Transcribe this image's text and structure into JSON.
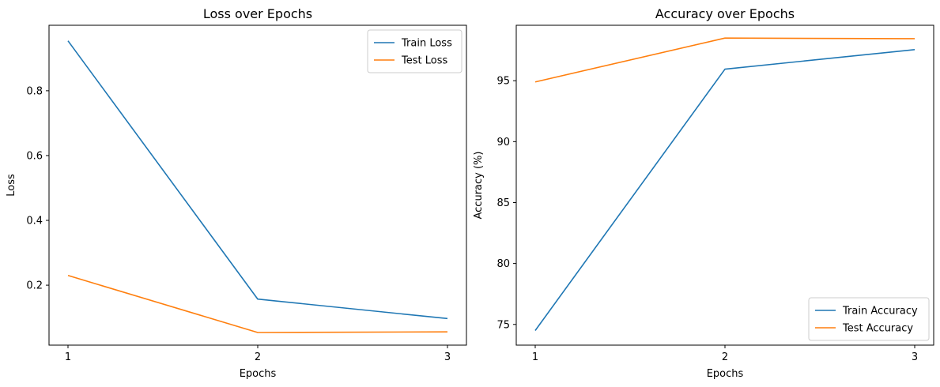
{
  "chart_data": [
    {
      "type": "line",
      "title": "Loss over Epochs",
      "xlabel": "Epochs",
      "ylabel": "Loss",
      "x": [
        1,
        2,
        3
      ],
      "xlim": [
        0.9,
        3.1
      ],
      "ylim": [
        0.015,
        1.002
      ],
      "xticks": [
        1,
        2,
        3
      ],
      "yticks": [
        0.2,
        0.4,
        0.6,
        0.8
      ],
      "ytick_labels": [
        "0.2",
        "0.4",
        "0.6",
        "0.8"
      ],
      "legend_position": "top-right",
      "grid": false,
      "series": [
        {
          "name": "Train Loss",
          "color": "#1f77b4",
          "values": [
            0.954,
            0.157,
            0.097
          ]
        },
        {
          "name": "Test Loss",
          "color": "#ff7f0e",
          "values": [
            0.23,
            0.054,
            0.056
          ]
        }
      ]
    },
    {
      "type": "line",
      "title": "Accuracy over Epochs",
      "xlabel": "Epochs",
      "ylabel": "Accuracy (%)",
      "x": [
        1,
        2,
        3
      ],
      "xlim": [
        0.9,
        3.1
      ],
      "ylim": [
        73.3,
        99.55
      ],
      "xticks": [
        1,
        2,
        3
      ],
      "yticks": [
        75,
        80,
        85,
        90,
        95
      ],
      "ytick_labels": [
        "75",
        "80",
        "85",
        "90",
        "95"
      ],
      "legend_position": "bottom-right",
      "grid": false,
      "series": [
        {
          "name": "Train Accuracy",
          "color": "#1f77b4",
          "values": [
            74.5,
            95.95,
            97.55
          ]
        },
        {
          "name": "Test Accuracy",
          "color": "#ff7f0e",
          "values": [
            94.9,
            98.5,
            98.45
          ]
        }
      ]
    }
  ]
}
